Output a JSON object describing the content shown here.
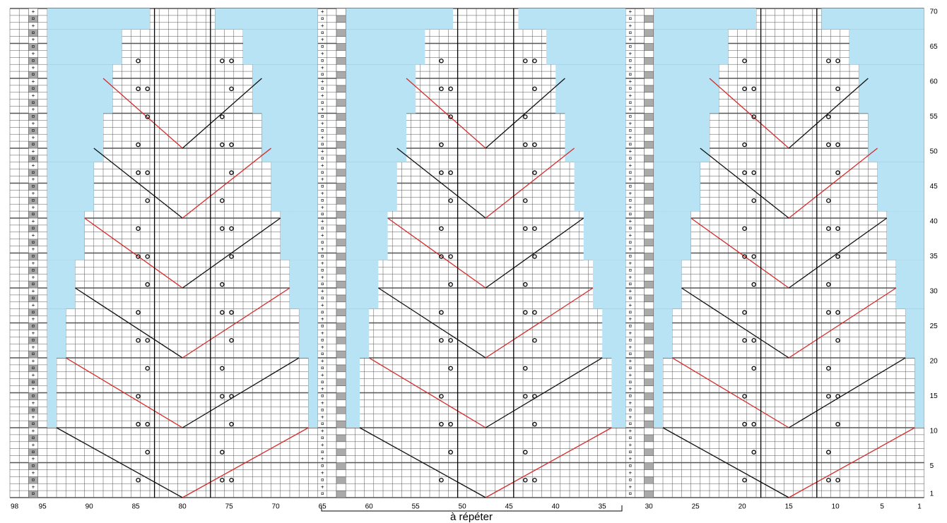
{
  "column_labels": [
    98,
    95,
    90,
    85,
    80,
    75,
    70,
    65,
    60,
    55,
    50,
    45,
    40,
    35,
    30,
    25,
    20,
    15,
    10,
    5,
    1
  ],
  "row_labels": [
    1,
    5,
    10,
    15,
    20,
    25,
    30,
    35,
    40,
    45,
    50,
    55,
    60,
    65,
    70
  ],
  "repeat_label": "à répéter"
}
